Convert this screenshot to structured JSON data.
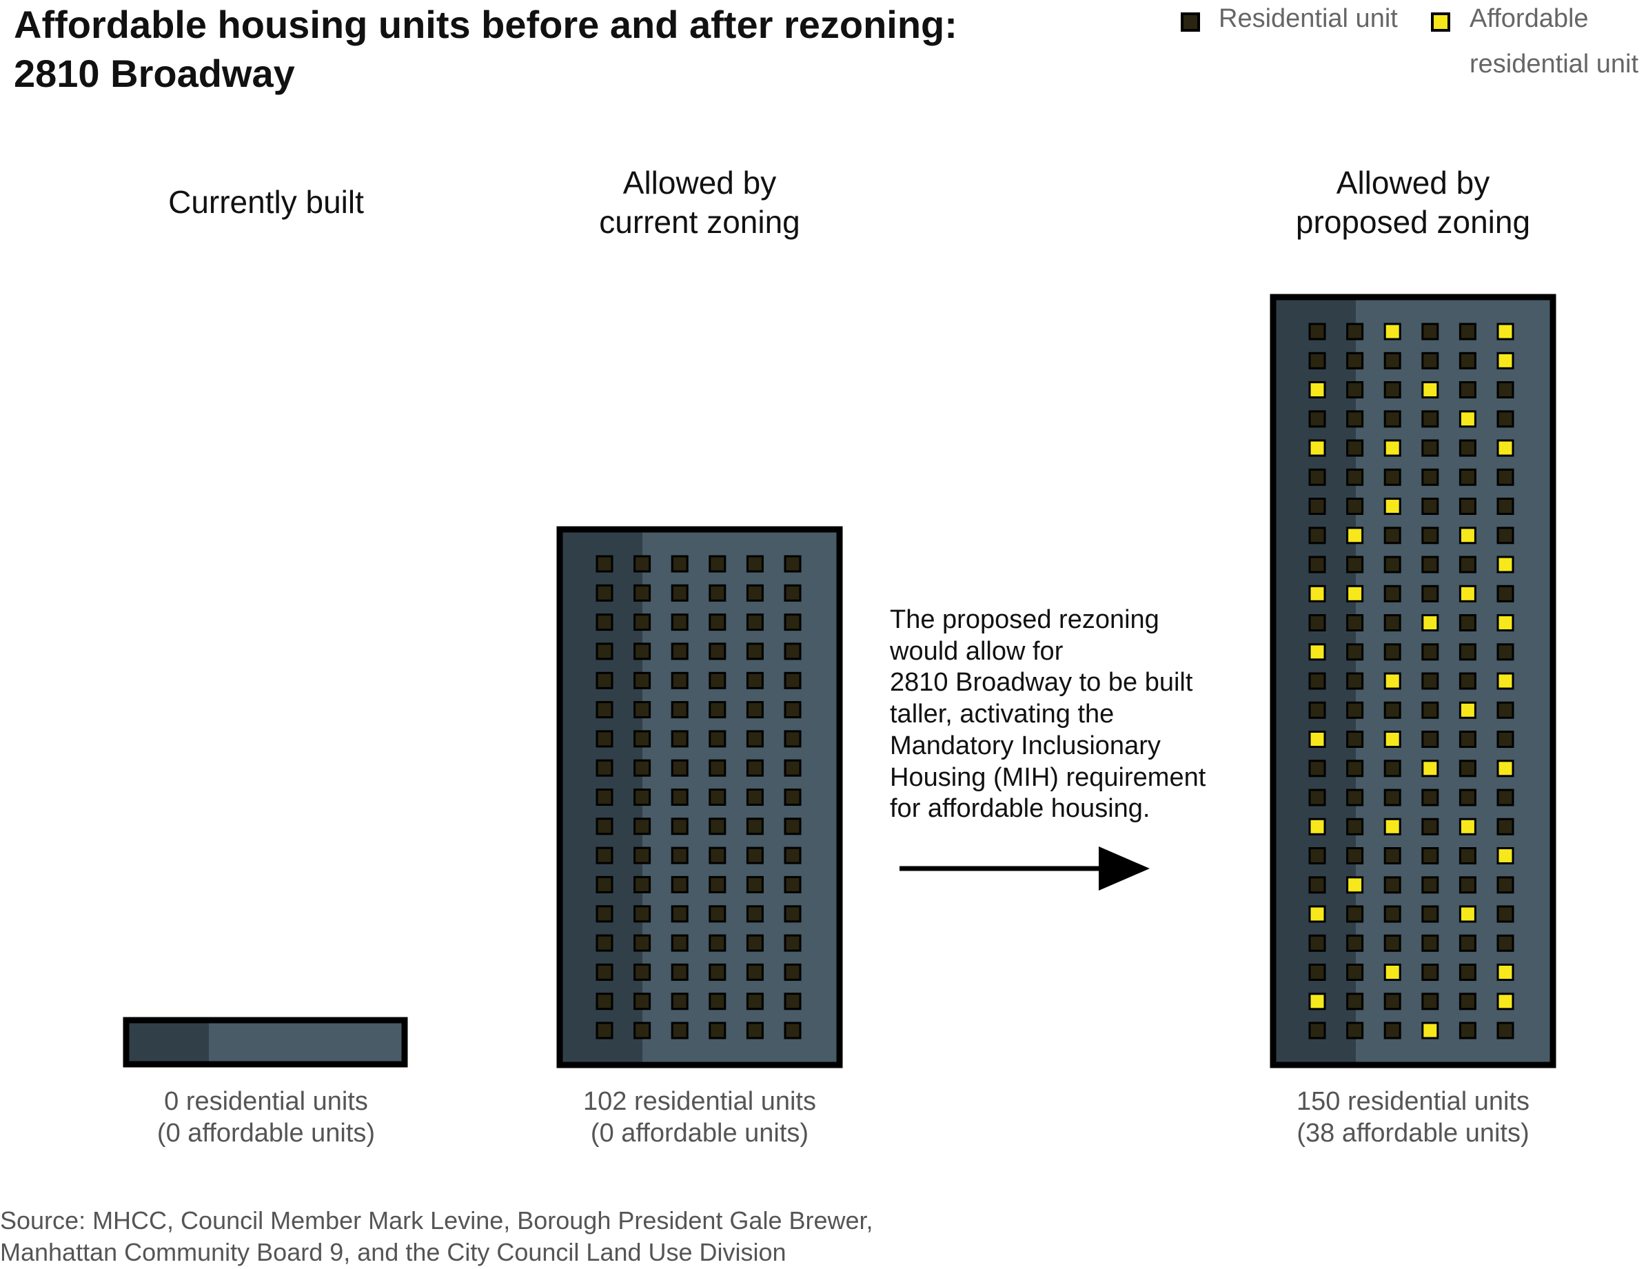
{
  "title": {
    "line1": "Affordable housing units before and after rezoning:",
    "line2": "2810 Broadway"
  },
  "legend": {
    "residential": "Residential unit",
    "affordable_line1": "Affordable",
    "affordable_line2": "residential unit"
  },
  "colors": {
    "building_face": "#485b67",
    "building_side": "#313f49",
    "building_outline": "#000000",
    "residential_unit": "#2a2510",
    "affordable_unit": "#f7e81c"
  },
  "buildings": [
    {
      "heading": [
        "Currently built"
      ],
      "caption": [
        "0 residential units",
        "(0 affordable units)"
      ],
      "residential_units": 0,
      "affordable_units": 0
    },
    {
      "heading": [
        "Allowed by",
        "current zoning"
      ],
      "caption": [
        "102 residential units",
        "(0 affordable units)"
      ],
      "residential_units": 102,
      "affordable_units": 0,
      "floors": 17,
      "units_per_floor": 6
    },
    {
      "heading": [
        "Allowed by",
        "proposed zoning"
      ],
      "caption": [
        "150 residential units",
        "(38 affordable units)"
      ],
      "residential_units": 150,
      "affordable_units": 38,
      "floors": 25,
      "units_per_floor": 6,
      "affordable_pattern": [
        [
          0,
          0,
          1,
          0,
          0,
          1
        ],
        [
          0,
          0,
          0,
          0,
          0,
          1
        ],
        [
          1,
          0,
          0,
          1,
          0,
          0
        ],
        [
          0,
          0,
          0,
          0,
          1,
          0
        ],
        [
          1,
          0,
          1,
          0,
          0,
          1
        ],
        [
          0,
          0,
          0,
          0,
          0,
          0
        ],
        [
          0,
          0,
          1,
          0,
          0,
          0
        ],
        [
          0,
          1,
          0,
          0,
          1,
          0
        ],
        [
          0,
          0,
          0,
          0,
          0,
          1
        ],
        [
          1,
          1,
          0,
          0,
          1,
          0
        ],
        [
          0,
          0,
          0,
          1,
          0,
          1
        ],
        [
          1,
          0,
          0,
          0,
          0,
          0
        ],
        [
          0,
          0,
          1,
          0,
          0,
          1
        ],
        [
          0,
          0,
          0,
          0,
          1,
          0
        ],
        [
          1,
          0,
          1,
          0,
          0,
          0
        ],
        [
          0,
          0,
          0,
          1,
          0,
          1
        ],
        [
          0,
          0,
          0,
          0,
          0,
          0
        ],
        [
          1,
          0,
          1,
          0,
          1,
          0
        ],
        [
          0,
          0,
          0,
          0,
          0,
          1
        ],
        [
          0,
          1,
          0,
          0,
          0,
          0
        ],
        [
          1,
          0,
          0,
          0,
          1,
          0
        ],
        [
          0,
          0,
          0,
          0,
          0,
          0
        ],
        [
          0,
          0,
          1,
          0,
          0,
          1
        ],
        [
          1,
          0,
          0,
          0,
          0,
          1
        ],
        [
          0,
          0,
          0,
          1,
          0,
          0
        ]
      ]
    }
  ],
  "annotation": [
    "The proposed rezoning",
    "would allow for",
    "2810 Broadway to be built",
    "taller, activating the",
    "Mandatory Inclusionary",
    "Housing (MIH) requirement",
    "for affordable housing."
  ],
  "source": [
    "Source: MHCC, Council Member Mark Levine, Borough President Gale Brewer,",
    "Manhattan Community Board 9, and the City Council Land Use Division"
  ]
}
